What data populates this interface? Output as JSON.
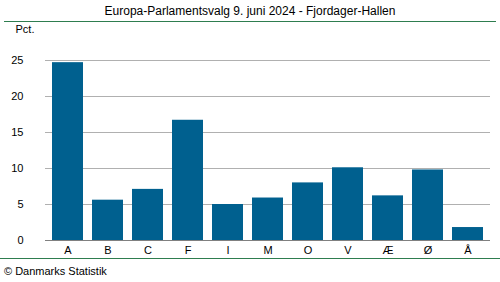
{
  "chart_data": {
    "type": "bar",
    "title": "Europa-Parlamentsvalg 9. juni 2024 - Fjordager-Hallen",
    "y_label": "Pct.",
    "caption": "© Danmarks Statistik",
    "categories": [
      "A",
      "B",
      "C",
      "F",
      "I",
      "M",
      "O",
      "V",
      "Æ",
      "Ø",
      "Å"
    ],
    "values": [
      24.7,
      5.6,
      7.1,
      16.7,
      5.0,
      5.9,
      8.0,
      10.1,
      6.2,
      9.8,
      1.8
    ],
    "color": "#00608f",
    "ylim": [
      0,
      25
    ],
    "yticks": [
      0,
      5,
      10,
      15,
      20,
      25
    ],
    "grid": true
  }
}
